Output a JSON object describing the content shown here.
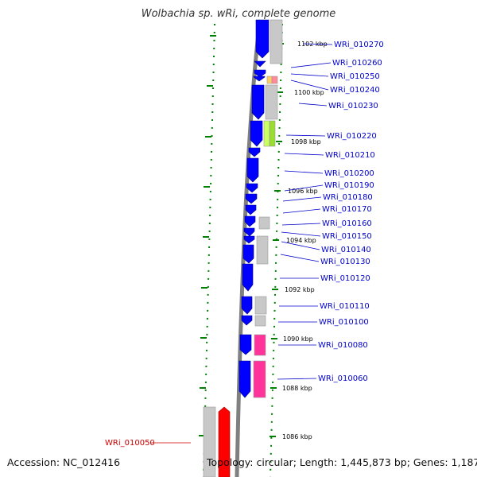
{
  "title": "Wolbachia sp. wRi, complete genome",
  "accession": "Accession: NC_012416",
  "summary": "Topology: circular; Length: 1,445,873 bp; Genes: 1,187",
  "colors": {
    "backbone": "#808080",
    "ticks": "#008000",
    "gene_forward": "#0000ff",
    "gene_selected": "#ff0000",
    "label": "#0000cc",
    "label_selected": "#cc0000",
    "cds_gray": "#c8c8c8",
    "magenta": "#ff3399",
    "lime": "#99dd33",
    "orange": "#ffaa66"
  },
  "scale_labels": [
    "1102 kbp",
    "1100 kbp",
    "1098 kbp",
    "1096 kbp",
    "1094 kbp",
    "1092 kbp",
    "1090 kbp",
    "1088 kbp",
    "1086 kbp"
  ],
  "gene_labels": [
    "WRi_010270",
    "WRi_010260",
    "WRi_010250",
    "WRi_010240",
    "WRi_010230",
    "WRi_010220",
    "WRi_010210",
    "WRi_010200",
    "WRi_010190",
    "WRi_010180",
    "WRi_010170",
    "WRi_010160",
    "WRi_010150",
    "WRi_010140",
    "WRi_010130",
    "WRi_010120",
    "WRi_010110",
    "WRi_010100",
    "WRi_010080",
    "WRi_010060"
  ],
  "selected_label": "WRi_010050"
}
